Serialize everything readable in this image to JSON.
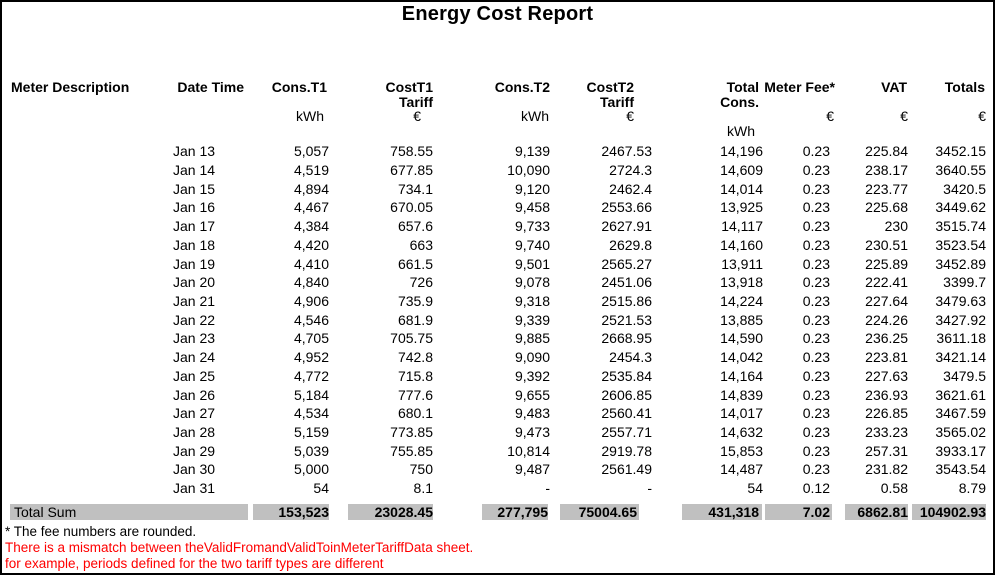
{
  "title": "Energy Cost Report",
  "table": {
    "columns": [
      {
        "label": "Meter Description",
        "sub": "",
        "unit": "",
        "unit2": ""
      },
      {
        "label": "Date Time",
        "sub": "",
        "unit": "",
        "unit2": ""
      },
      {
        "label": "Cons.T1",
        "sub": "",
        "unit": "kWh",
        "unit2": ""
      },
      {
        "label": "CostT1",
        "sub": "Tariff",
        "unit": "€",
        "unit2": ""
      },
      {
        "label": "Cons.T2",
        "sub": "",
        "unit": "kWh",
        "unit2": ""
      },
      {
        "label": "CostT2",
        "sub": "Tariff",
        "unit": "€",
        "unit2": ""
      },
      {
        "label": "Total",
        "sub": "Cons.",
        "unit": "",
        "unit2": "kWh"
      },
      {
        "label": "Meter Fee*",
        "sub": "",
        "unit": "€",
        "unit2": ""
      },
      {
        "label": "VAT",
        "sub": "",
        "unit": "€",
        "unit2": ""
      },
      {
        "label": "Totals",
        "sub": "",
        "unit": "€",
        "unit2": ""
      }
    ],
    "rows": [
      [
        "Jan 13",
        "5,057",
        "758.55",
        "9,139",
        "2467.53",
        "14,196",
        "0.23",
        "225.84",
        "3452.15"
      ],
      [
        "Jan 14",
        "4,519",
        "677.85",
        "10,090",
        "2724.3",
        "14,609",
        "0.23",
        "238.17",
        "3640.55"
      ],
      [
        "Jan 15",
        "4,894",
        "734.1",
        "9,120",
        "2462.4",
        "14,014",
        "0.23",
        "223.77",
        "3420.5"
      ],
      [
        "Jan 16",
        "4,467",
        "670.05",
        "9,458",
        "2553.66",
        "13,925",
        "0.23",
        "225.68",
        "3449.62"
      ],
      [
        "Jan 17",
        "4,384",
        "657.6",
        "9,733",
        "2627.91",
        "14,117",
        "0.23",
        "230",
        "3515.74"
      ],
      [
        "Jan 18",
        "4,420",
        "663",
        "9,740",
        "2629.8",
        "14,160",
        "0.23",
        "230.51",
        "3523.54"
      ],
      [
        "Jan 19",
        "4,410",
        "661.5",
        "9,501",
        "2565.27",
        "13,911",
        "0.23",
        "225.89",
        "3452.89"
      ],
      [
        "Jan 20",
        "4,840",
        "726",
        "9,078",
        "2451.06",
        "13,918",
        "0.23",
        "222.41",
        "3399.7"
      ],
      [
        "Jan 21",
        "4,906",
        "735.9",
        "9,318",
        "2515.86",
        "14,224",
        "0.23",
        "227.64",
        "3479.63"
      ],
      [
        "Jan 22",
        "4,546",
        "681.9",
        "9,339",
        "2521.53",
        "13,885",
        "0.23",
        "224.26",
        "3427.92"
      ],
      [
        "Jan 23",
        "4,705",
        "705.75",
        "9,885",
        "2668.95",
        "14,590",
        "0.23",
        "236.25",
        "3611.18"
      ],
      [
        "Jan 24",
        "4,952",
        "742.8",
        "9,090",
        "2454.3",
        "14,042",
        "0.23",
        "223.81",
        "3421.14"
      ],
      [
        "Jan 25",
        "4,772",
        "715.8",
        "9,392",
        "2535.84",
        "14,164",
        "0.23",
        "227.63",
        "3479.5"
      ],
      [
        "Jan 26",
        "5,184",
        "777.6",
        "9,655",
        "2606.85",
        "14,839",
        "0.23",
        "236.93",
        "3621.61"
      ],
      [
        "Jan 27",
        "4,534",
        "680.1",
        "9,483",
        "2560.41",
        "14,017",
        "0.23",
        "226.85",
        "3467.59"
      ],
      [
        "Jan 28",
        "5,159",
        "773.85",
        "9,473",
        "2557.71",
        "14,632",
        "0.23",
        "233.23",
        "3565.02"
      ],
      [
        "Jan 29",
        "5,039",
        "755.85",
        "10,814",
        "2919.78",
        "15,853",
        "0.23",
        "257.31",
        "3933.17"
      ],
      [
        "Jan 30",
        "5,000",
        "750",
        "9,487",
        "2561.49",
        "14,487",
        "0.23",
        "231.82",
        "3543.54"
      ],
      [
        "Jan 31",
        "54",
        "8.1",
        "-",
        "-",
        "54",
        "0.12",
        "0.58",
        "8.79"
      ]
    ],
    "total_row": {
      "label": "Total Sum",
      "values": [
        "153,523",
        "23028.45",
        "277,795",
        "75004.65",
        "431,318",
        "7.02",
        "6862.81",
        "104902.93"
      ]
    }
  },
  "footnotes": {
    "fee_note": "* The fee numbers are rounded.",
    "warning_line1": "There is a mismatch between theValidFromandValidToinMeterTariffData sheet.",
    "warning_line2": "for example, periods defined for the two tariff types are different"
  },
  "colors": {
    "total_row_bar": "#c0c0c0",
    "warning_text": "#ff0000"
  }
}
